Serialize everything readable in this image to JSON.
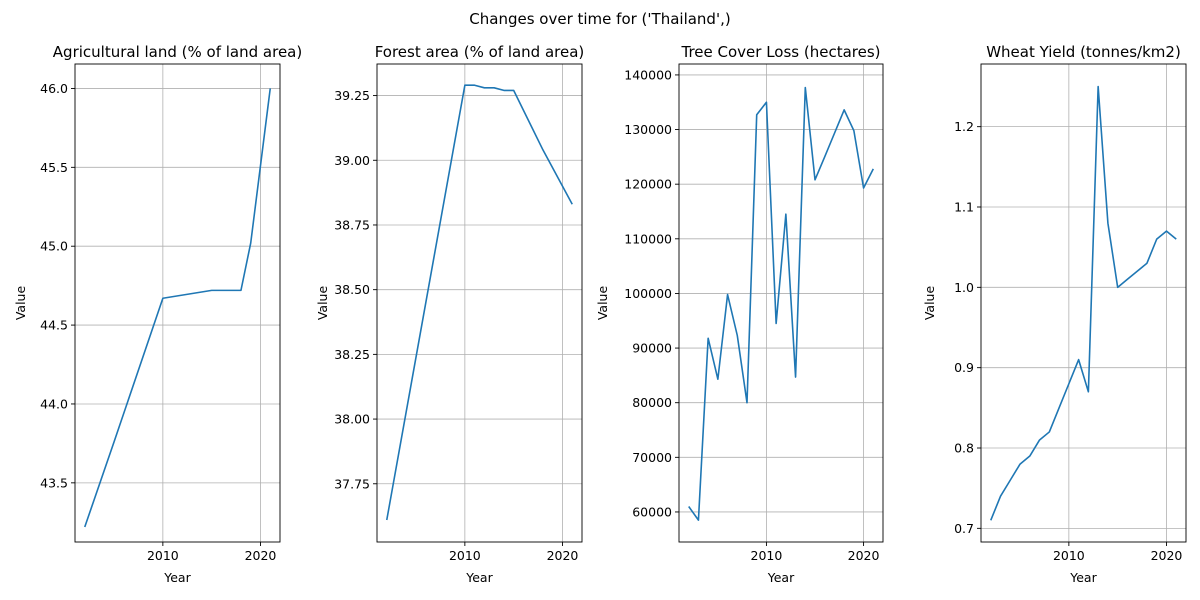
{
  "figure": {
    "suptitle": "Changes over time for ('Thailand',)"
  },
  "style": {
    "line_color": "#1f77b4",
    "grid_color": "#b0b0b0",
    "axis_color": "#000000"
  },
  "chart_data": [
    {
      "type": "line",
      "title": "Agricultural land (% of land area)",
      "xlabel": "Year",
      "ylabel": "Value",
      "xlim": [
        2001,
        2022
      ],
      "ylim": [
        43.125,
        46.155
      ],
      "xticks": [
        2010,
        2020
      ],
      "yticks": [
        43.5,
        44.0,
        44.5,
        45.0,
        45.5,
        46.0
      ],
      "ytick_labels": [
        "43.5",
        "44.0",
        "44.5",
        "45.0",
        "45.5",
        "46.0"
      ],
      "grid": true,
      "series": [
        {
          "x": [
            2002,
            2005,
            2010,
            2015,
            2018,
            2019,
            2021
          ],
          "y": [
            43.22,
            43.76,
            44.67,
            44.72,
            44.72,
            45.02,
            46.0
          ]
        }
      ]
    },
    {
      "type": "line",
      "title": "Forest area (% of land area)",
      "xlabel": "Year",
      "ylabel": "Value",
      "xlim": [
        2001,
        2022
      ],
      "ylim": [
        37.525,
        39.372
      ],
      "xticks": [
        2010,
        2020
      ],
      "yticks": [
        37.75,
        38.0,
        38.25,
        38.5,
        38.75,
        39.0,
        39.25
      ],
      "ytick_labels": [
        "37.75",
        "38.00",
        "38.25",
        "38.50",
        "38.75",
        "39.00",
        "39.25"
      ],
      "grid": true,
      "series": [
        {
          "x": [
            2002,
            2010,
            2011,
            2012,
            2013,
            2014,
            2015,
            2018,
            2021
          ],
          "y": [
            37.61,
            39.29,
            39.29,
            39.28,
            39.28,
            39.27,
            39.27,
            39.04,
            38.83
          ]
        }
      ]
    },
    {
      "type": "line",
      "title": "Tree Cover Loss (hectares)",
      "xlabel": "Year",
      "ylabel": "Value",
      "xlim": [
        2001,
        2022
      ],
      "ylim": [
        54500,
        142000
      ],
      "xticks": [
        2010,
        2020
      ],
      "yticks": [
        60000,
        70000,
        80000,
        90000,
        100000,
        110000,
        120000,
        130000,
        140000
      ],
      "ytick_labels": [
        "60000",
        "70000",
        "80000",
        "90000",
        "100000",
        "110000",
        "120000",
        "130000",
        "140000"
      ],
      "grid": true,
      "series": [
        {
          "x": [
            2002,
            2003,
            2004,
            2005,
            2006,
            2007,
            2008,
            2009,
            2010,
            2011,
            2012,
            2013,
            2014,
            2015,
            2016,
            2017,
            2018,
            2019,
            2020,
            2021
          ],
          "y": [
            61000,
            58500,
            91800,
            84300,
            99800,
            92300,
            80000,
            132700,
            135000,
            94500,
            114500,
            84700,
            137700,
            120800,
            125000,
            129300,
            133600,
            129800,
            119300,
            122800
          ]
        }
      ]
    },
    {
      "type": "line",
      "title": "Wheat Yield (tonnes/km2)",
      "xlabel": "Year",
      "ylabel": "Value",
      "xlim": [
        2001,
        2022
      ],
      "ylim": [
        0.683,
        1.278
      ],
      "xticks": [
        2010,
        2020
      ],
      "yticks": [
        0.7,
        0.8,
        0.9,
        1.0,
        1.1,
        1.2
      ],
      "ytick_labels": [
        "0.7",
        "0.8",
        "0.9",
        "1.0",
        "1.1",
        "1.2"
      ],
      "grid": true,
      "series": [
        {
          "x": [
            2002,
            2003,
            2004,
            2005,
            2006,
            2007,
            2008,
            2009,
            2010,
            2011,
            2012,
            2013,
            2014,
            2015,
            2016,
            2017,
            2018,
            2019,
            2020,
            2021
          ],
          "y": [
            0.71,
            0.74,
            0.76,
            0.78,
            0.79,
            0.81,
            0.82,
            0.85,
            0.88,
            0.91,
            0.87,
            1.25,
            1.08,
            1.0,
            1.01,
            1.02,
            1.03,
            1.06,
            1.07,
            1.06
          ]
        }
      ]
    }
  ]
}
